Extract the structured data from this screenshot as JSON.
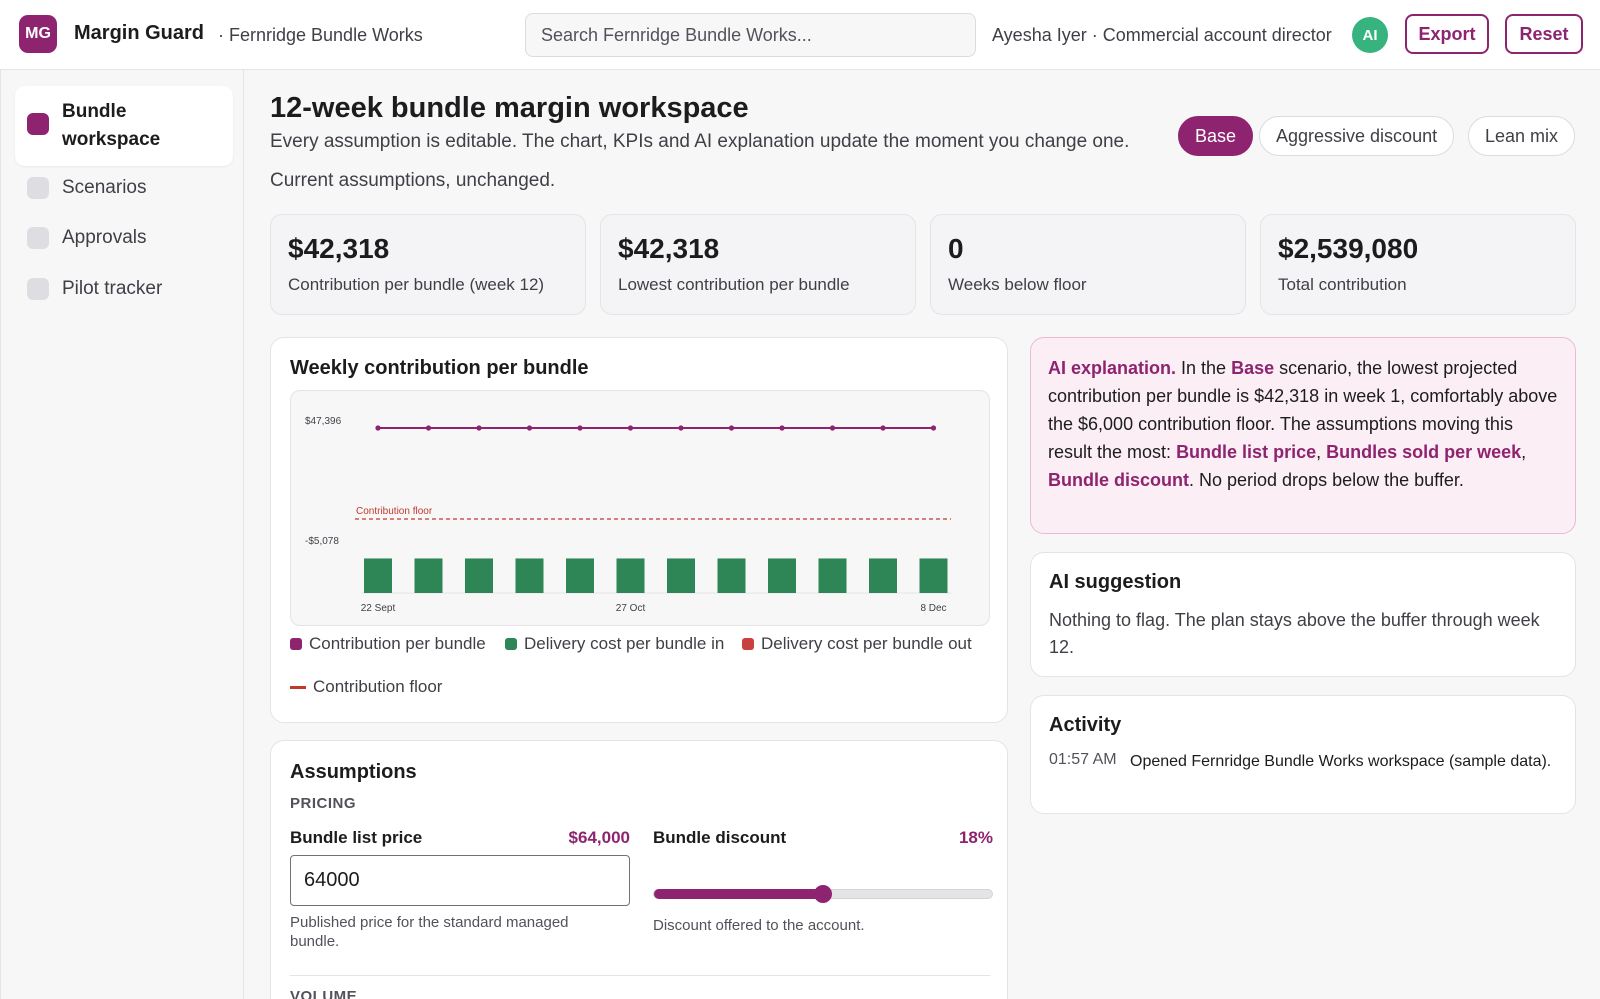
{
  "header": {
    "logo": "MG",
    "brand": "Margin Guard",
    "org": "· Fernridge Bundle Works",
    "search_placeholder": "Search Fernridge Bundle Works...",
    "user": "Ayesha Iyer · Commercial account director",
    "avatar": "AI",
    "export_label": "Export",
    "reset_label": "Reset",
    "accent": "#8e2470"
  },
  "sidebar": {
    "items": [
      {
        "label": "Bundle workspace",
        "active": true
      },
      {
        "label": "Scenarios",
        "active": false
      },
      {
        "label": "Approvals",
        "active": false
      },
      {
        "label": "Pilot tracker",
        "active": false
      }
    ]
  },
  "main": {
    "title": "12-week bundle margin workspace",
    "subtitle": "Every assumption is editable. The chart, KPIs and AI explanation update the moment you change one.",
    "status": "Current assumptions, unchanged.",
    "scenarios": [
      {
        "label": "Base",
        "active": true
      },
      {
        "label": "Aggressive discount",
        "active": false
      },
      {
        "label": "Lean mix",
        "active": false
      }
    ]
  },
  "kpis": [
    {
      "value": "$42,318",
      "label": "Contribution per bundle (week 12)"
    },
    {
      "value": "$42,318",
      "label": "Lowest contribution per bundle"
    },
    {
      "value": "0",
      "label": "Weeks below floor"
    },
    {
      "value": "$2,539,080",
      "label": "Total contribution"
    }
  ],
  "chart_card": {
    "title": "Weekly contribution per bundle"
  },
  "chart_data": {
    "type": "bar",
    "y_tick_labels": [
      "$47,396",
      "-$5,078"
    ],
    "x_tick_labels": [
      {
        "index": 0,
        "label": "22 Sept"
      },
      {
        "index": 5,
        "label": "27 Oct"
      },
      {
        "index": 11,
        "label": "8 Dec"
      }
    ],
    "floor_label": "Contribution floor",
    "floor_value": 6000,
    "weeks": 12,
    "series": [
      {
        "name": "Contribution per bundle",
        "kind": "line",
        "color": "#8e2470",
        "values": [
          42318,
          42318,
          42318,
          42318,
          42318,
          42318,
          42318,
          42318,
          42318,
          42318,
          42318,
          42318
        ]
      },
      {
        "name": "Delivery cost per bundle in",
        "kind": "bar",
        "color": "#2e8555",
        "values": [
          -5078,
          -5078,
          -5078,
          -5078,
          -5078,
          -5078,
          -5078,
          -5078,
          -5078,
          -5078,
          -5078,
          -5078
        ]
      },
      {
        "name": "Delivery cost per bundle out",
        "kind": "bar",
        "color": "#c94040",
        "values": [
          0,
          0,
          0,
          0,
          0,
          0,
          0,
          0,
          0,
          0,
          0,
          0
        ]
      }
    ],
    "legend": [
      {
        "label": "Contribution per bundle",
        "color": "#8e2470",
        "kind": "swatch"
      },
      {
        "label": "Delivery cost per bundle in",
        "color": "#2e8555",
        "kind": "swatch"
      },
      {
        "label": "Delivery cost per bundle out",
        "color": "#c94040",
        "kind": "swatch"
      },
      {
        "label": "Contribution floor",
        "color": "#c0392b",
        "kind": "line"
      }
    ],
    "legend_placement": "bottom"
  },
  "assumptions": {
    "title": "Assumptions",
    "pricing_label": "PRICING",
    "list_price_label": "Bundle list price",
    "list_price_display": "$64,000",
    "list_price_value": "64000",
    "list_price_help": "Published price for the standard managed bundle.",
    "discount_label": "Bundle discount",
    "discount_display": "18%",
    "discount_fraction": 0.5,
    "discount_help": "Discount offered to the account.",
    "volume_label": "VOLUME"
  },
  "ai": {
    "prefix": "AI explanation.",
    "t1": " In the ",
    "scenario": "Base",
    "t2": " scenario, the lowest projected contribution per bundle is $42,318 in week 1, comfortably above the $6,000 contribution floor. The assumptions moving this result the most: ",
    "d1": "Bundle list price",
    "sep1": ", ",
    "d2": "Bundles sold per week",
    "sep2": ", ",
    "d3": "Bundle discount",
    "t3": ". No period drops below the buffer."
  },
  "suggestion": {
    "title": "AI suggestion",
    "text": "Nothing to flag. The plan stays above the buffer through week 12."
  },
  "activity": {
    "title": "Activity",
    "time": "01:57 AM",
    "text": "Opened Fernridge Bundle Works workspace (sample data)."
  }
}
